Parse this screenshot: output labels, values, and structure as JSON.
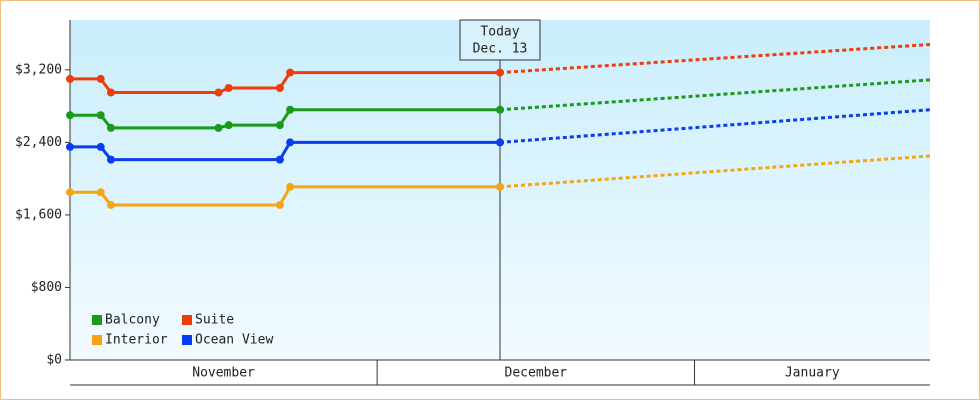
{
  "chart_data": {
    "type": "line",
    "ylim": [
      0,
      3750
    ],
    "yticks": [
      {
        "value": 0,
        "label": "$0"
      },
      {
        "value": 800,
        "label": "$800"
      },
      {
        "value": 1600,
        "label": "$1,600"
      },
      {
        "value": 2400,
        "label": "$2,400"
      },
      {
        "value": 3200,
        "label": "$3,200"
      }
    ],
    "xlim": [
      0,
      84
    ],
    "x_bands": [
      {
        "label": "November",
        "start": 0,
        "end": 30
      },
      {
        "label": "December",
        "start": 30,
        "end": 61
      },
      {
        "label": "January",
        "start": 61,
        "end": 84
      }
    ],
    "today": {
      "x": 42,
      "label": "Today",
      "date": "Dec. 13"
    },
    "series": [
      {
        "name": "Balcony",
        "color": "#1a9a1a",
        "x": [
          0,
          3,
          4,
          14.5,
          15.5,
          20.5,
          21.5,
          42,
          84
        ],
        "values": [
          2700,
          2700,
          2560,
          2560,
          2590,
          2590,
          2760,
          2760,
          3090
        ]
      },
      {
        "name": "Suite",
        "color": "#f03c0a",
        "x": [
          0,
          3,
          4,
          14.5,
          15.5,
          20.5,
          21.5,
          42,
          84
        ],
        "values": [
          3100,
          3100,
          2950,
          2950,
          3000,
          3000,
          3170,
          3170,
          3480
        ]
      },
      {
        "name": "Interior",
        "color": "#f5a511",
        "x": [
          0,
          3,
          4,
          20.5,
          21.5,
          42,
          84
        ],
        "values": [
          1850,
          1850,
          1710,
          1710,
          1910,
          1910,
          2250
        ]
      },
      {
        "name": "Ocean View",
        "color": "#0a3cf0",
        "x": [
          0,
          3,
          4,
          20.5,
          21.5,
          42,
          84
        ],
        "values": [
          2350,
          2350,
          2210,
          2210,
          2400,
          2400,
          2760
        ]
      }
    ]
  }
}
